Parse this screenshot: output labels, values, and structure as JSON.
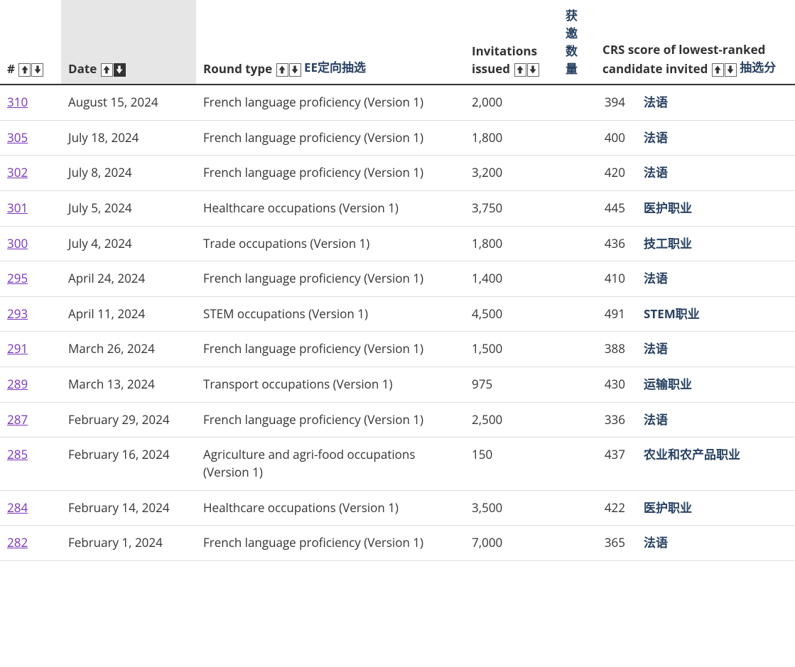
{
  "colors": {
    "text": "#333333",
    "link_visited": "#7834bc",
    "cn_blue": "#284162",
    "row_border": "#dddddd",
    "header_border": "#333333",
    "sorted_bg": "#e6e6e6",
    "arrow_dark": "#333333",
    "arrow_light": "#ffffff",
    "background": "#ffffff"
  },
  "headers": {
    "num": "#",
    "date": "Date",
    "round_type": "Round type",
    "round_type_cn": "EE定向抽选",
    "invitations": "Invitations issued",
    "invitations_cn": "获邀数量",
    "crs": "CRS score of lowest-ranked candidate invited",
    "crs_cn": "抽选分"
  },
  "rows": [
    {
      "num": "310",
      "date": "August 15, 2024",
      "type": "French language proficiency (Version 1)",
      "inv": "2,000",
      "crs": "394",
      "cn": "法语"
    },
    {
      "num": "305",
      "date": "July 18, 2024",
      "type": "French language proficiency (Version 1)",
      "inv": "1,800",
      "crs": "400",
      "cn": "法语"
    },
    {
      "num": "302",
      "date": "July 8, 2024",
      "type": "French language proficiency (Version 1)",
      "inv": "3,200",
      "crs": "420",
      "cn": "法语"
    },
    {
      "num": "301",
      "date": "July 5, 2024",
      "type": "Healthcare occupations (Version 1)",
      "inv": "3,750",
      "crs": "445",
      "cn": "医护职业"
    },
    {
      "num": "300",
      "date": "July 4, 2024",
      "type": "Trade occupations (Version 1)",
      "inv": "1,800",
      "crs": "436",
      "cn": "技工职业"
    },
    {
      "num": "295",
      "date": "April 24, 2024",
      "type": "French language proficiency (Version 1)",
      "inv": "1,400",
      "crs": "410",
      "cn": "法语"
    },
    {
      "num": "293",
      "date": "April 11, 2024",
      "type": "STEM occupations (Version 1)",
      "inv": "4,500",
      "crs": "491",
      "cn": "STEM职业"
    },
    {
      "num": "291",
      "date": "March 26, 2024",
      "type": "French language proficiency (Version 1)",
      "inv": "1,500",
      "crs": "388",
      "cn": "法语"
    },
    {
      "num": "289",
      "date": "March 13, 2024",
      "type": "Transport occupations (Version 1)",
      "inv": "975",
      "crs": "430",
      "cn": "运输职业"
    },
    {
      "num": "287",
      "date": "February 29, 2024",
      "type": "French language proficiency (Version 1)",
      "inv": "2,500",
      "crs": "336",
      "cn": "法语"
    },
    {
      "num": "285",
      "date": "February 16, 2024",
      "type": "Agriculture and agri-food occupations (Version 1)",
      "inv": "150",
      "crs": "437",
      "cn": "农业和农产品职业"
    },
    {
      "num": "284",
      "date": "February 14, 2024",
      "type": "Healthcare occupations (Version 1)",
      "inv": "3,500",
      "crs": "422",
      "cn": "医护职业"
    },
    {
      "num": "282",
      "date": "February 1, 2024",
      "type": "French language proficiency (Version 1)",
      "inv": "7,000",
      "crs": "365",
      "cn": "法语"
    }
  ]
}
